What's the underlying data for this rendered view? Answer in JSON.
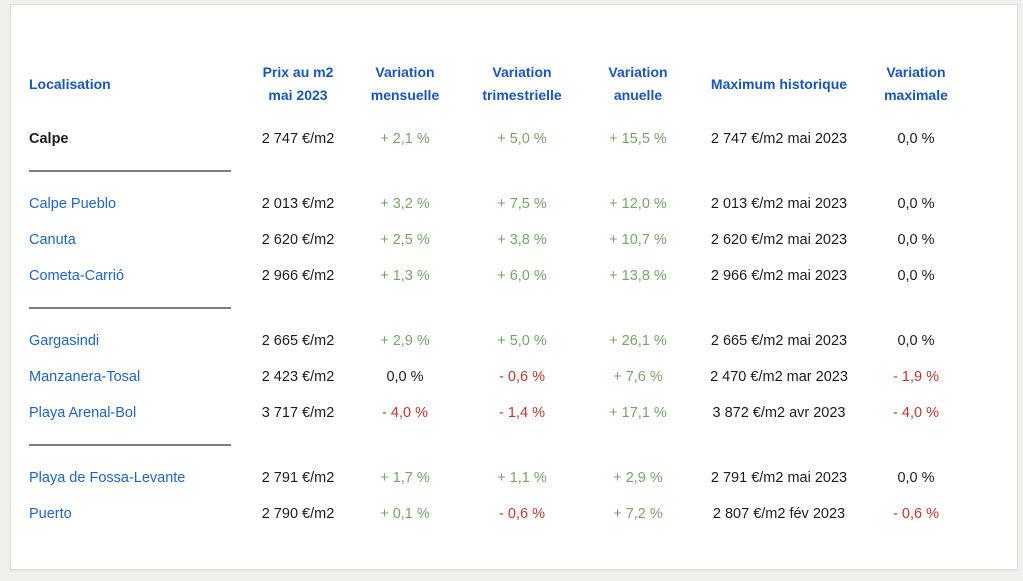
{
  "palette": {
    "header_blue": "#1656bd",
    "link_blue": "#1e64c8",
    "green": "#74a765",
    "red": "#c23630",
    "text": "#1c1c1a",
    "divider": "#7d7d7d",
    "page_background": "#f2f0ec",
    "card_background": "#ffffff",
    "card_border": "#e0ddd7"
  },
  "header": {
    "columns": [
      {
        "line1": "Localisation",
        "line2": ""
      },
      {
        "line1": "Prix au m2",
        "line2": "mai 2023"
      },
      {
        "line1": "Variation",
        "line2": "mensuelle"
      },
      {
        "line1": "Variation",
        "line2": "trimestrielle"
      },
      {
        "line1": "Variation",
        "line2": "anuelle"
      },
      {
        "line1": "Maximum historique",
        "line2": ""
      },
      {
        "line1": "Variation",
        "line2": "maximale"
      }
    ]
  },
  "groups": [
    {
      "rows": [
        {
          "location": "Calpe",
          "bold": true,
          "link": false,
          "price": "2 747 €/m2",
          "monthly": {
            "v": "+ 2,1 %",
            "c": "green"
          },
          "quarterly": {
            "v": "+ 5,0 %",
            "c": "green"
          },
          "annual": {
            "v": "+ 15,5 %",
            "c": "green"
          },
          "max_historic": "2 747 €/m2 mai 2023",
          "max_variation": {
            "v": "0,0 %",
            "c": "black"
          }
        }
      ]
    },
    {
      "rows": [
        {
          "location": "Calpe Pueblo",
          "bold": false,
          "link": true,
          "price": "2 013 €/m2",
          "monthly": {
            "v": "+ 3,2 %",
            "c": "green"
          },
          "quarterly": {
            "v": "+ 7,5 %",
            "c": "green"
          },
          "annual": {
            "v": "+ 12,0 %",
            "c": "green"
          },
          "max_historic": "2 013 €/m2 mai 2023",
          "max_variation": {
            "v": "0,0 %",
            "c": "black"
          }
        },
        {
          "location": "Canuta",
          "bold": false,
          "link": true,
          "price": "2 620 €/m2",
          "monthly": {
            "v": "+ 2,5 %",
            "c": "green"
          },
          "quarterly": {
            "v": "+ 3,8 %",
            "c": "green"
          },
          "annual": {
            "v": "+ 10,7 %",
            "c": "green"
          },
          "max_historic": "2 620 €/m2 mai 2023",
          "max_variation": {
            "v": "0,0 %",
            "c": "black"
          }
        },
        {
          "location": "Cometa-Carrió",
          "bold": false,
          "link": true,
          "price": "2 966 €/m2",
          "monthly": {
            "v": "+ 1,3 %",
            "c": "green"
          },
          "quarterly": {
            "v": "+ 6,0 %",
            "c": "green"
          },
          "annual": {
            "v": "+ 13,8 %",
            "c": "green"
          },
          "max_historic": "2 966 €/m2 mai 2023",
          "max_variation": {
            "v": "0,0 %",
            "c": "black"
          }
        }
      ]
    },
    {
      "rows": [
        {
          "location": "Gargasindi",
          "bold": false,
          "link": true,
          "price": "2 665 €/m2",
          "monthly": {
            "v": "+ 2,9 %",
            "c": "green"
          },
          "quarterly": {
            "v": "+ 5,0 %",
            "c": "green"
          },
          "annual": {
            "v": "+ 26,1 %",
            "c": "green"
          },
          "max_historic": "2 665 €/m2 mai 2023",
          "max_variation": {
            "v": "0,0 %",
            "c": "black"
          }
        },
        {
          "location": "Manzanera-Tosal",
          "bold": false,
          "link": true,
          "price": "2 423 €/m2",
          "monthly": {
            "v": "0,0 %",
            "c": "black"
          },
          "quarterly": {
            "v": "- 0,6 %",
            "c": "red"
          },
          "annual": {
            "v": "+ 7,6 %",
            "c": "green"
          },
          "max_historic": "2 470 €/m2 mar 2023",
          "max_variation": {
            "v": "- 1,9 %",
            "c": "red"
          }
        },
        {
          "location": "Playa Arenal-Bol",
          "bold": false,
          "link": true,
          "price": "3 717 €/m2",
          "monthly": {
            "v": "- 4,0 %",
            "c": "red"
          },
          "quarterly": {
            "v": "- 1,4 %",
            "c": "red"
          },
          "annual": {
            "v": "+ 17,1 %",
            "c": "green"
          },
          "max_historic": "3 872 €/m2 avr 2023",
          "max_variation": {
            "v": "- 4,0 %",
            "c": "red"
          }
        }
      ]
    },
    {
      "rows": [
        {
          "location": "Playa de Fossa-Levante",
          "bold": false,
          "link": true,
          "price": "2 791 €/m2",
          "monthly": {
            "v": "+ 1,7 %",
            "c": "green"
          },
          "quarterly": {
            "v": "+ 1,1 %",
            "c": "green"
          },
          "annual": {
            "v": "+ 2,9 %",
            "c": "green"
          },
          "max_historic": "2 791 €/m2 mai 2023",
          "max_variation": {
            "v": "0,0 %",
            "c": "black"
          }
        },
        {
          "location": "Puerto",
          "bold": false,
          "link": true,
          "price": "2 790 €/m2",
          "monthly": {
            "v": "+ 0,1 %",
            "c": "green"
          },
          "quarterly": {
            "v": "- 0,6 %",
            "c": "red"
          },
          "annual": {
            "v": "+ 7,2 %",
            "c": "green"
          },
          "max_historic": "2 807 €/m2 fév 2023",
          "max_variation": {
            "v": "- 0,6 %",
            "c": "red"
          }
        }
      ]
    }
  ]
}
